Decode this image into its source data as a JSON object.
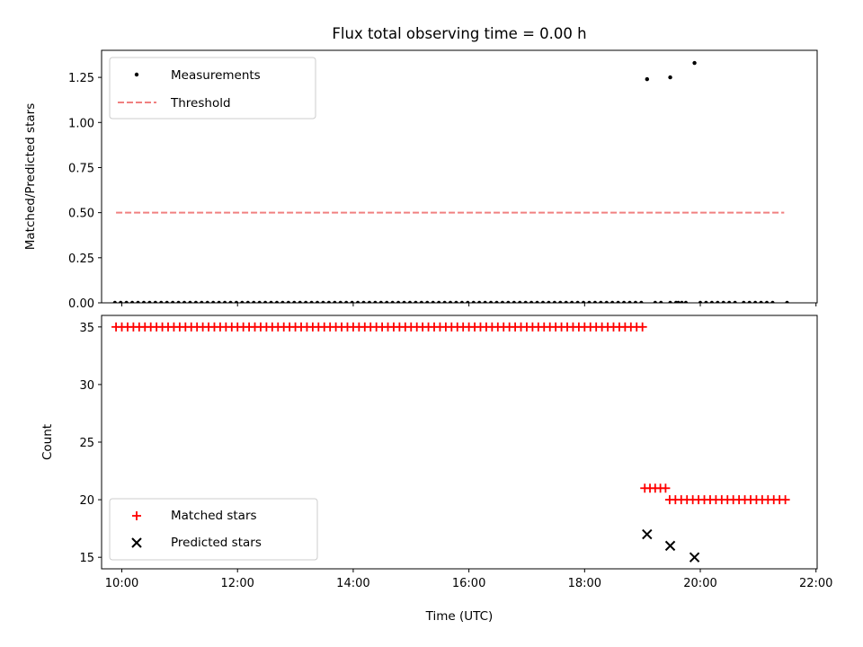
{
  "chart_data": [
    {
      "type": "scatter",
      "title": "Flux total observing time = 0.00 h",
      "xlabel": "",
      "ylabel": "Matched/Predicted stars",
      "xlim": [
        9.65,
        22.02
      ],
      "ylim": [
        0.0,
        1.4
      ],
      "x_unit": "hours UTC",
      "yticks": [
        0.0,
        0.25,
        0.5,
        0.75,
        1.0,
        1.25
      ],
      "ytick_labels": [
        "0.00",
        "0.25",
        "0.50",
        "0.75",
        "1.00",
        "1.25"
      ],
      "xticks": [
        10,
        12,
        14,
        16,
        18,
        20,
        22
      ],
      "xtick_labels": [
        "10:00",
        "12:00",
        "14:00",
        "16:00",
        "18:00",
        "20:00",
        "22:00"
      ],
      "show_xtick_labels": false,
      "grid": false,
      "legend_placement": "top-left",
      "series": [
        {
          "name": "Measurements",
          "kind": "points",
          "color": "#000000",
          "zero_runs": [
            {
              "start": 9.88,
              "end": 19.02,
              "step": 0.1
            },
            {
              "start": 19.48,
              "end": 19.72,
              "step": 0.1
            },
            {
              "start": 20.0,
              "end": 20.6,
              "step": 0.1
            },
            {
              "start": 20.75,
              "end": 21.3,
              "step": 0.1
            }
          ],
          "x": [
            19.08,
            19.48,
            19.9,
            19.22,
            19.32,
            19.62,
            19.75,
            21.5
          ],
          "y": [
            1.24,
            1.25,
            1.33,
            0.0,
            0.0,
            0.0,
            0.0,
            0.0
          ]
        },
        {
          "name": "Threshold",
          "kind": "dashed-line",
          "color": "#f08080",
          "x": [
            9.9,
            21.45
          ],
          "y": [
            0.5,
            0.5
          ]
        }
      ]
    },
    {
      "type": "scatter",
      "title": "",
      "xlabel": "Time (UTC)",
      "ylabel": "Count",
      "xlim": [
        9.65,
        22.02
      ],
      "ylim": [
        14.0,
        36.0
      ],
      "x_unit": "hours UTC",
      "yticks": [
        15,
        20,
        25,
        30,
        35
      ],
      "ytick_labels": [
        "15",
        "20",
        "25",
        "30",
        "35"
      ],
      "xticks": [
        10,
        12,
        14,
        16,
        18,
        20,
        22
      ],
      "xtick_labels": [
        "10:00",
        "12:00",
        "14:00",
        "16:00",
        "18:00",
        "20:00",
        "22:00"
      ],
      "show_xtick_labels": true,
      "grid": false,
      "legend_placement": "bottom-left",
      "series": [
        {
          "name": "Matched stars",
          "marker": "plus",
          "color": "#ff0000",
          "runs": [
            {
              "start": 9.9,
              "end": 19.02,
              "step": 0.1,
              "y": 35
            },
            {
              "start": 19.04,
              "end": 19.4,
              "step": 0.09,
              "y": 21
            },
            {
              "start": 19.47,
              "end": 21.47,
              "step": 0.1,
              "y": 20
            }
          ],
          "x": [],
          "y": []
        },
        {
          "name": "Predicted stars",
          "marker": "x",
          "color": "#000000",
          "x": [
            19.08,
            19.48,
            19.9
          ],
          "y": [
            17,
            16,
            15
          ]
        }
      ]
    }
  ]
}
